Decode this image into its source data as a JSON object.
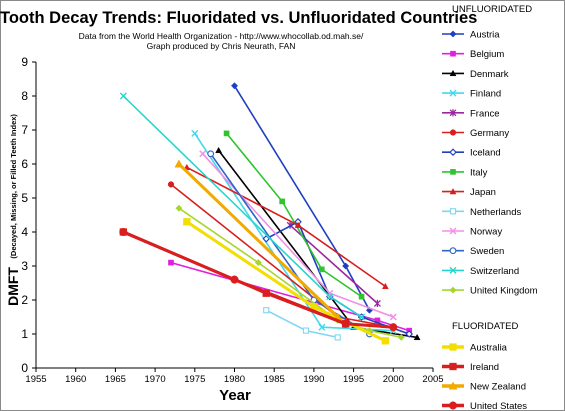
{
  "chart_data": {
    "type": "line",
    "title": "Tooth Decay Trends:  Fluoridated vs. Unfluoridated Countries",
    "subtitle_lines": [
      "Data from the World Health Organization - http://www.whocollab.od.mah.se/",
      "Graph produced by Chris Neurath, FAN"
    ],
    "xlabel": "Year",
    "ylabel": "DMFT",
    "ylabel_detail": "(Decayed, Missing, or Filled Teeth Index)",
    "xlim": [
      1955,
      2005
    ],
    "ylim": [
      0,
      9
    ],
    "x_ticks": [
      "1955",
      "1960",
      "1965",
      "1970",
      "1975",
      "1980",
      "1985",
      "1990",
      "1995",
      "2000",
      "2005"
    ],
    "y_ticks": [
      "0",
      "1",
      "2",
      "3",
      "4",
      "5",
      "6",
      "7",
      "8",
      "9"
    ],
    "grid": false,
    "legend": "right",
    "legend_groups": [
      "UNFLUORIDATED",
      "FLUORIDATED"
    ],
    "series": [
      {
        "name": "Austria",
        "group": "UNFLUORIDATED",
        "color": "#1f3fbf",
        "marker": "diamond",
        "x": [
          1980,
          1994,
          1997
        ],
        "y": [
          8.3,
          3.0,
          1.7
        ]
      },
      {
        "name": "Belgium",
        "group": "UNFLUORIDATED",
        "color": "#e020e0",
        "marker": "square",
        "x": [
          1972,
          1998,
          2002
        ],
        "y": [
          3.1,
          1.4,
          1.1
        ]
      },
      {
        "name": "Denmark",
        "group": "UNFLUORIDATED",
        "color": "#000000",
        "marker": "triangle",
        "x": [
          1978,
          1995,
          2003
        ],
        "y": [
          6.4,
          1.2,
          0.9
        ]
      },
      {
        "name": "Finland",
        "group": "UNFLUORIDATED",
        "color": "#44d8e8",
        "marker": "x",
        "x": [
          1975,
          1991,
          2000
        ],
        "y": [
          6.9,
          1.2,
          1.1
        ]
      },
      {
        "name": "France",
        "group": "UNFLUORIDATED",
        "color": "#9b27a0",
        "marker": "star",
        "x": [
          1987,
          1998
        ],
        "y": [
          4.2,
          1.9
        ]
      },
      {
        "name": "Germany",
        "group": "UNFLUORIDATED",
        "color": "#d81e1e",
        "marker": "circle",
        "x": [
          1972,
          1993,
          2000
        ],
        "y": [
          5.4,
          1.5,
          1.2
        ]
      },
      {
        "name": "Iceland",
        "group": "UNFLUORIDATED",
        "color": "#1f3fbf",
        "marker": "diamond-open",
        "x": [
          1984,
          1988,
          1992,
          1996,
          2002
        ],
        "y": [
          3.8,
          4.3,
          2.1,
          1.5,
          1.0
        ]
      },
      {
        "name": "Italy",
        "group": "UNFLUORIDATED",
        "color": "#2ec42e",
        "marker": "square",
        "x": [
          1979,
          1986,
          1991,
          1996
        ],
        "y": [
          6.9,
          4.9,
          2.9,
          2.1
        ]
      },
      {
        "name": "Japan",
        "group": "UNFLUORIDATED",
        "color": "#d81e1e",
        "marker": "triangle",
        "x": [
          1974,
          1988,
          1999
        ],
        "y": [
          5.9,
          4.2,
          2.4
        ]
      },
      {
        "name": "Netherlands",
        "group": "UNFLUORIDATED",
        "color": "#7fd6f2",
        "marker": "square-open",
        "x": [
          1984,
          1989,
          1993
        ],
        "y": [
          1.7,
          1.1,
          0.9
        ]
      },
      {
        "name": "Norway",
        "group": "UNFLUORIDATED",
        "color": "#f090e6",
        "marker": "x",
        "x": [
          1976,
          1992,
          2000
        ],
        "y": [
          6.3,
          2.2,
          1.5
        ]
      },
      {
        "name": "Sweden",
        "group": "UNFLUORIDATED",
        "color": "#2f64c8",
        "marker": "circle-open",
        "x": [
          1977,
          1990,
          1997
        ],
        "y": [
          6.3,
          2.0,
          1.0
        ]
      },
      {
        "name": "Switzerland",
        "group": "UNFLUORIDATED",
        "color": "#26d6cc",
        "marker": "x",
        "x": [
          1966,
          1992,
          1996
        ],
        "y": [
          8.0,
          2.1,
          1.5
        ]
      },
      {
        "name": "United Kingdom",
        "group": "UNFLUORIDATED",
        "color": "#a6d62c",
        "marker": "diamond",
        "x": [
          1973,
          1983,
          1993,
          1997,
          2001
        ],
        "y": [
          4.7,
          3.1,
          1.4,
          1.1,
          0.9
        ]
      },
      {
        "name": "Australia",
        "group": "FLUORIDATED",
        "color": "#f2de00",
        "marker": "square",
        "x": [
          1974,
          1990,
          1999
        ],
        "y": [
          4.3,
          1.8,
          0.8
        ]
      },
      {
        "name": "Ireland",
        "group": "FLUORIDATED",
        "color": "#d81e1e",
        "marker": "square",
        "x": [
          1966,
          1984,
          1994
        ],
        "y": [
          4.0,
          2.2,
          1.3
        ]
      },
      {
        "name": "New Zealand",
        "group": "FLUORIDATED",
        "color": "#f2a900",
        "marker": "triangle",
        "x": [
          1973,
          1993
        ],
        "y": [
          6.0,
          1.5
        ]
      },
      {
        "name": "United States",
        "group": "FLUORIDATED",
        "color": "#d81e1e",
        "marker": "circle",
        "x": [
          1966,
          1980,
          1994,
          2000
        ],
        "y": [
          4.0,
          2.6,
          1.3,
          1.2
        ]
      }
    ]
  }
}
